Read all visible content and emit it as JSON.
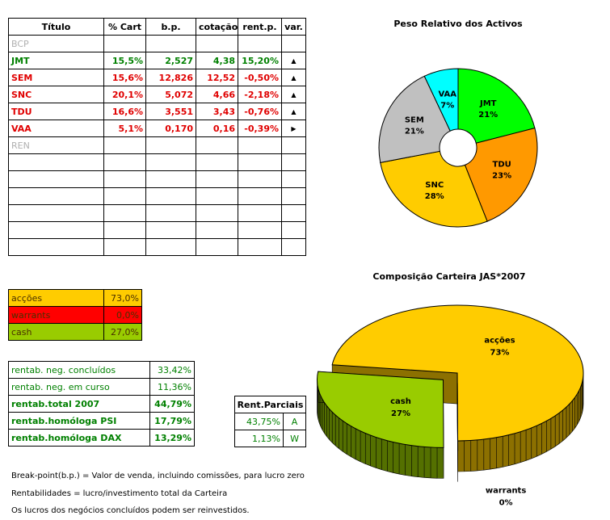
{
  "portfolio": {
    "header": [
      "Título",
      "% Cart",
      "b.p.",
      "cotação",
      "rent.p.",
      "var."
    ],
    "rows": [
      {
        "cells": [
          "BCP"
        ],
        "color": "#b0b0b0",
        "bold": false
      },
      {
        "cells": [
          "JMT",
          "15,5%",
          "2,527",
          "4,38",
          "15,20%",
          "▲"
        ],
        "color": "#008000",
        "bold": true
      },
      {
        "cells": [
          "SEM",
          "15,6%",
          "12,826",
          "12,52",
          "-0,50%",
          "▲"
        ],
        "color": "#e00000",
        "bold": true
      },
      {
        "cells": [
          "SNC",
          "20,1%",
          "5,072",
          "4,66",
          "-2,18%",
          "▲"
        ],
        "color": "#e00000",
        "bold": true
      },
      {
        "cells": [
          "TDU",
          "16,6%",
          "3,551",
          "3,43",
          "-0,76%",
          "▲"
        ],
        "color": "#e00000",
        "bold": true
      },
      {
        "cells": [
          "VAA",
          "5,1%",
          "0,170",
          "0,16",
          "-0,39%",
          "▶"
        ],
        "color": "#e00000",
        "bold": true
      },
      {
        "cells": [
          "REN"
        ],
        "color": "#b0b0b0",
        "bold": false
      }
    ]
  },
  "allocation": {
    "rows": [
      {
        "cells": [
          "acções",
          "73,0%"
        ],
        "color": "#ffcc00"
      },
      {
        "cells": [
          "warrants",
          "0,0%"
        ],
        "color": "#ff0000"
      },
      {
        "cells": [
          "cash",
          "27,0%"
        ],
        "color": "#99cc00"
      }
    ]
  },
  "returns": {
    "rows": [
      {
        "cells": [
          "rentab. neg. concluídos",
          "33,42%"
        ],
        "bold": false
      },
      {
        "cells": [
          "rentab. neg. em curso",
          "11,36%"
        ],
        "bold": false
      },
      {
        "cells": [
          "rentab.total 2007",
          "44,79%"
        ],
        "bold": true
      },
      {
        "cells": [
          "rentab.homóloga PSI",
          "17,79%"
        ],
        "bold": true
      },
      {
        "cells": [
          "rentab.homóloga DAX",
          "13,29%"
        ],
        "bold": true
      }
    ]
  },
  "partials": {
    "header": "Rent.Parciais",
    "rows": [
      [
        "43,75%",
        "A"
      ],
      [
        "1,13%",
        "W"
      ]
    ]
  },
  "notes": [
    "Break-point(b.p.) = Valor de venda, incluindo comissões, para lucro zero",
    "Rentabilidades = lucro/investimento total da Carteira",
    "Os lucros dos negócios concluídos podem ser reinvestidos."
  ],
  "chart_data": [
    {
      "type": "donut",
      "title": "Peso Relativo dos Activos",
      "categories": [
        "JMT",
        "TDU",
        "SNC",
        "SEM",
        "VAA"
      ],
      "values": [
        21,
        23,
        28,
        21,
        7
      ],
      "value_labels": [
        "21%",
        "23%",
        "28%",
        "21%",
        "7%"
      ],
      "colors": [
        "#00ff00",
        "#ff9900",
        "#ffcc00",
        "#c0c0c0",
        "#00ffff"
      ]
    },
    {
      "type": "pie3d",
      "title": "Composição Carteira JAS*2007",
      "categories": [
        "acções",
        "warrants",
        "cash"
      ],
      "values": [
        73,
        0,
        27
      ],
      "value_labels": [
        "73%",
        "0%",
        "27%"
      ],
      "colors": [
        "#ffcc00",
        "#ff0000",
        "#99cc00"
      ]
    }
  ]
}
